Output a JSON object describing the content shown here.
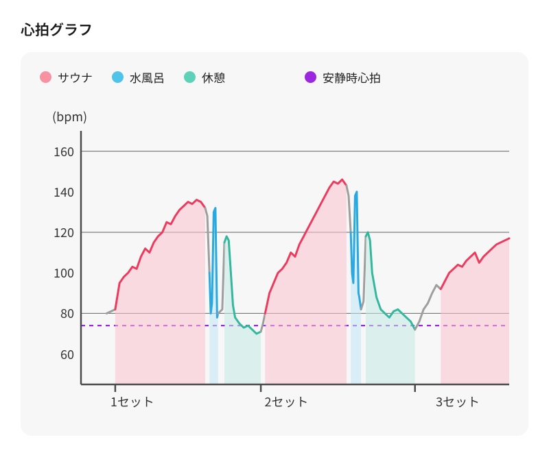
{
  "title": "心拍グラフ",
  "card": {
    "background": "#f8f7f8",
    "border_radius": 16
  },
  "legend": {
    "items": [
      {
        "label": "サウナ",
        "color": "#f792a2",
        "key": "sauna"
      },
      {
        "label": "水風呂",
        "color": "#4fc3e8",
        "key": "coldbath"
      },
      {
        "label": "休憩",
        "color": "#5ed1b8",
        "key": "rest"
      },
      {
        "label": "安静時心拍",
        "color": "#9b27e0",
        "key": "resting"
      }
    ],
    "fontsize": 17
  },
  "chart": {
    "type": "line-area",
    "ylabel": "(bpm)",
    "ylim": [
      45,
      170
    ],
    "yticks": [
      60,
      80,
      100,
      120,
      140,
      160
    ],
    "y_grid_at": [
      80,
      120,
      160
    ],
    "xlim": [
      0,
      100
    ],
    "xticks": [
      {
        "pos": 12,
        "label": "1セット"
      },
      {
        "pos": 48,
        "label": "2セット"
      },
      {
        "pos": 88,
        "label": "3セット"
      }
    ],
    "x_major_ticks_at": [
      8,
      42,
      78
    ],
    "colors": {
      "axis": "#4b4b4b",
      "grid": "#808080",
      "sauna_line": "#ed3b5d",
      "sauna_fill": "#f9c3ce",
      "cold_line": "#2aa9e0",
      "cold_fill": "#bfe7f4",
      "rest_line": "#33b89e",
      "rest_fill": "#c3ebe2",
      "gap_line": "#9e9e9e",
      "resting_dash": "#9b27e0"
    },
    "resting_hr": 74,
    "segments": [
      {
        "phase": "gap",
        "points": [
          [
            6,
            80
          ],
          [
            8,
            82
          ]
        ]
      },
      {
        "phase": "sauna",
        "points": [
          [
            8,
            82
          ],
          [
            9,
            95
          ],
          [
            10,
            98
          ],
          [
            11,
            100
          ],
          [
            12,
            103
          ],
          [
            13,
            102
          ],
          [
            14,
            108
          ],
          [
            15,
            112
          ],
          [
            16,
            110
          ],
          [
            17,
            115
          ],
          [
            18,
            118
          ],
          [
            19,
            120
          ],
          [
            20,
            125
          ],
          [
            21,
            124
          ],
          [
            22,
            128
          ],
          [
            23,
            131
          ],
          [
            24,
            133
          ],
          [
            25,
            135
          ],
          [
            26,
            134
          ],
          [
            27,
            136
          ],
          [
            28,
            135
          ],
          [
            29,
            132
          ]
        ]
      },
      {
        "phase": "gap",
        "points": [
          [
            29,
            132
          ],
          [
            29.5,
            128
          ],
          [
            30,
            100
          ]
        ]
      },
      {
        "phase": "cold",
        "points": [
          [
            30,
            100
          ],
          [
            30.3,
            80
          ],
          [
            30.6,
            85
          ],
          [
            31,
            130
          ],
          [
            31.4,
            132
          ],
          [
            31.8,
            78
          ],
          [
            32,
            80
          ]
        ]
      },
      {
        "phase": "gap",
        "points": [
          [
            32,
            80
          ],
          [
            33,
            82
          ],
          [
            33.5,
            115
          ]
        ]
      },
      {
        "phase": "rest",
        "points": [
          [
            33.5,
            115
          ],
          [
            34,
            118
          ],
          [
            34.5,
            116
          ],
          [
            35,
            100
          ],
          [
            35.5,
            84
          ],
          [
            36,
            78
          ],
          [
            37,
            75
          ],
          [
            38,
            73
          ],
          [
            39,
            74
          ],
          [
            40,
            72
          ],
          [
            41,
            70
          ],
          [
            42,
            71
          ]
        ]
      },
      {
        "phase": "gap",
        "points": [
          [
            42,
            71
          ],
          [
            42.5,
            75
          ],
          [
            43,
            80
          ]
        ]
      },
      {
        "phase": "sauna",
        "points": [
          [
            43,
            80
          ],
          [
            44,
            90
          ],
          [
            45,
            95
          ],
          [
            46,
            100
          ],
          [
            47,
            102
          ],
          [
            48,
            105
          ],
          [
            49,
            110
          ],
          [
            50,
            108
          ],
          [
            51,
            114
          ],
          [
            52,
            118
          ],
          [
            53,
            122
          ],
          [
            54,
            126
          ],
          [
            55,
            130
          ],
          [
            56,
            134
          ],
          [
            57,
            138
          ],
          [
            58,
            142
          ],
          [
            59,
            145
          ],
          [
            60,
            144
          ],
          [
            61,
            146
          ],
          [
            62,
            143
          ]
        ]
      },
      {
        "phase": "gap",
        "points": [
          [
            62,
            143
          ],
          [
            62.5,
            138
          ],
          [
            63,
            120
          ]
        ]
      },
      {
        "phase": "cold",
        "points": [
          [
            63,
            120
          ],
          [
            63.3,
            100
          ],
          [
            63.6,
            95
          ],
          [
            64,
            138
          ],
          [
            64.4,
            140
          ],
          [
            64.8,
            90
          ],
          [
            65,
            88
          ],
          [
            65.4,
            82
          ]
        ]
      },
      {
        "phase": "gap",
        "points": [
          [
            65.4,
            82
          ],
          [
            66,
            86
          ],
          [
            66.5,
            118
          ]
        ]
      },
      {
        "phase": "rest",
        "points": [
          [
            66.5,
            118
          ],
          [
            67,
            120
          ],
          [
            67.5,
            116
          ],
          [
            68,
            100
          ],
          [
            69,
            88
          ],
          [
            70,
            82
          ],
          [
            71,
            80
          ],
          [
            72,
            78
          ],
          [
            73,
            81
          ],
          [
            74,
            82
          ],
          [
            75,
            80
          ],
          [
            76,
            78
          ],
          [
            77,
            76
          ],
          [
            78,
            72
          ]
        ]
      },
      {
        "phase": "gap",
        "points": [
          [
            78,
            72
          ],
          [
            79,
            76
          ],
          [
            80,
            82
          ],
          [
            81,
            85
          ],
          [
            82,
            90
          ],
          [
            83,
            94
          ],
          [
            84,
            92
          ]
        ]
      },
      {
        "phase": "sauna",
        "points": [
          [
            84,
            92
          ],
          [
            85,
            96
          ],
          [
            86,
            100
          ],
          [
            87,
            102
          ],
          [
            88,
            104
          ],
          [
            89,
            103
          ],
          [
            90,
            106
          ],
          [
            91,
            108
          ],
          [
            92,
            110
          ],
          [
            93,
            105
          ],
          [
            94,
            108
          ],
          [
            95,
            110
          ],
          [
            96,
            112
          ],
          [
            97,
            114
          ],
          [
            98,
            115
          ],
          [
            99,
            116
          ],
          [
            100,
            117
          ]
        ]
      }
    ],
    "line_width": 3,
    "fill_opacity": 0.55,
    "axis_width": 2.5,
    "grid_width": 1.2,
    "dash_pattern": "6,6",
    "label_fontsize": 18
  }
}
